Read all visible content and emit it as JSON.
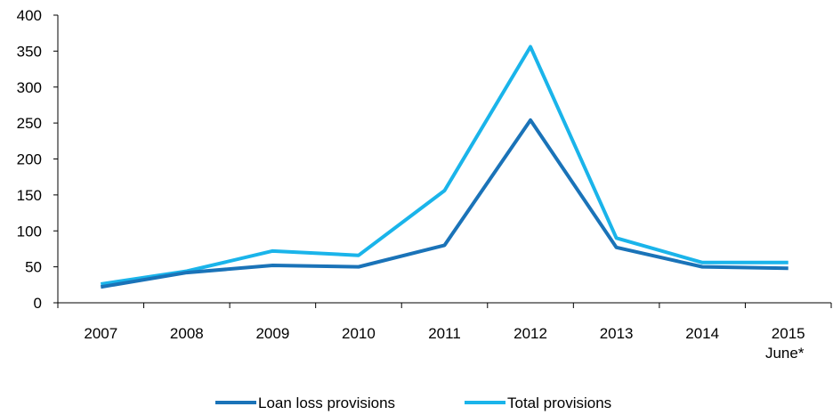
{
  "chart_data": {
    "type": "line",
    "categories": [
      [
        "2007"
      ],
      [
        "2008"
      ],
      [
        "2009"
      ],
      [
        "2010"
      ],
      [
        "2011"
      ],
      [
        "2012"
      ],
      [
        "2013"
      ],
      [
        "2014"
      ],
      [
        "2015",
        "June*"
      ]
    ],
    "ylim": [
      0,
      400
    ],
    "yticks": [
      0,
      50,
      100,
      150,
      200,
      250,
      300,
      350,
      400
    ],
    "grid": false,
    "legend_position": "bottom",
    "series": [
      {
        "name": "Loan loss provisions",
        "color": "#1a73b8",
        "values": [
          22,
          42,
          52,
          50,
          80,
          254,
          77,
          50,
          48
        ]
      },
      {
        "name": "Total provisions",
        "color": "#1ab4ea",
        "values": [
          26,
          44,
          72,
          66,
          156,
          356,
          90,
          56,
          56
        ]
      }
    ]
  }
}
